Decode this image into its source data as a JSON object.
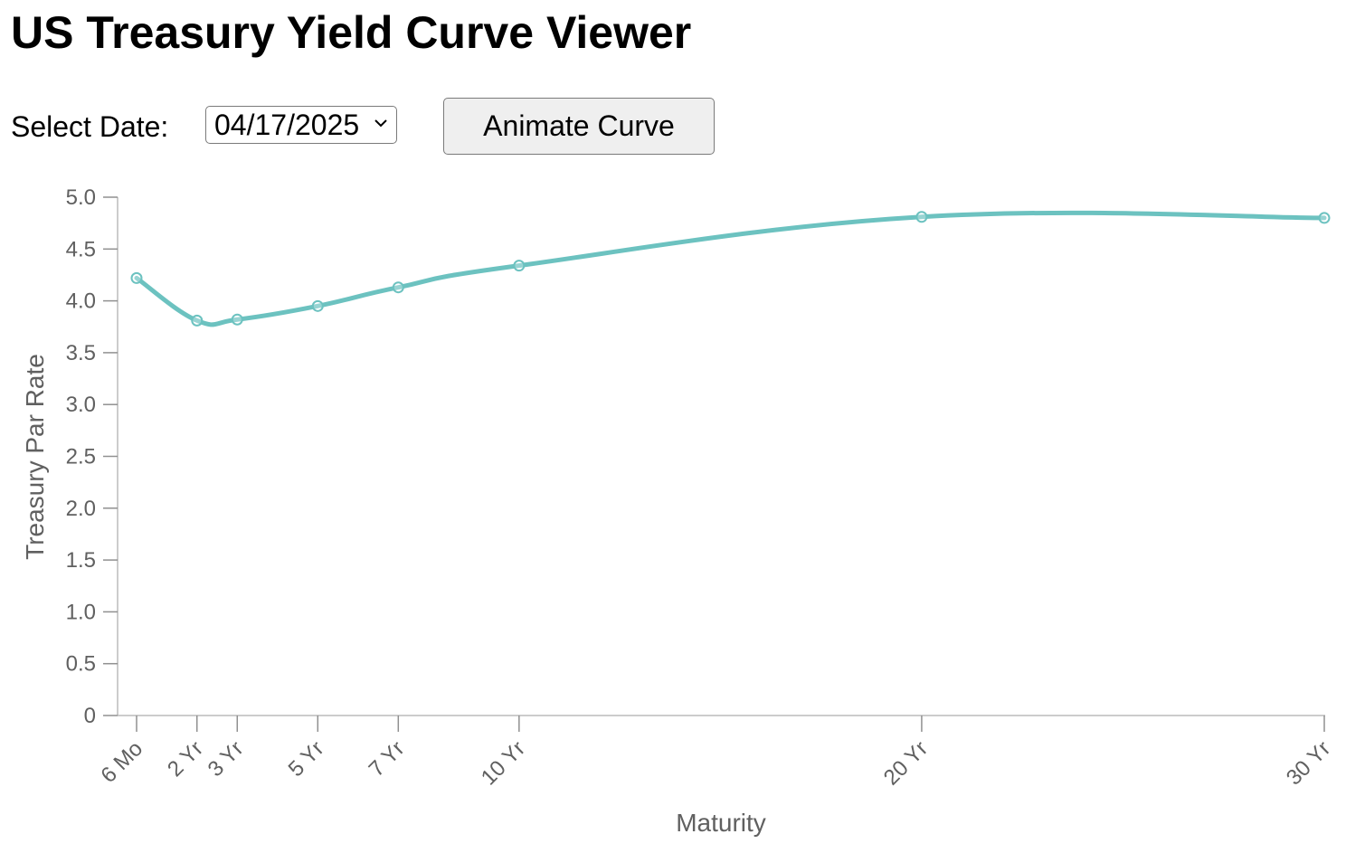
{
  "page": {
    "title": "US Treasury Yield Curve Viewer"
  },
  "controls": {
    "date_label": "Select Date:",
    "selected_date": "04/17/2025",
    "animate_button_label": "Animate Curve"
  },
  "colors": {
    "curve": "#6cc2c0",
    "axis": "#bcbcbc",
    "text": "#606060"
  },
  "icons": {
    "dropdown": "chevron-down-icon"
  },
  "chart_data": {
    "type": "line",
    "title": "",
    "xlabel": "Maturity",
    "ylabel": "Treasury Par Rate",
    "x_scale": "linear in years",
    "x": [
      0.5,
      2,
      3,
      5,
      7,
      10,
      20,
      30
    ],
    "x_tick_labels": [
      "6 Mo",
      "2 Yr",
      "3 Yr",
      "5 Yr",
      "7 Yr",
      "10 Yr",
      "20 Yr",
      "30 Yr"
    ],
    "xlim": [
      0.5,
      30
    ],
    "ylim": [
      0,
      5.0
    ],
    "y_ticks": [
      0,
      0.5,
      1.0,
      1.5,
      2.0,
      2.5,
      3.0,
      3.5,
      4.0,
      4.5,
      5.0
    ],
    "y_tick_labels": [
      "0",
      "0.5",
      "1.0",
      "1.5",
      "2.0",
      "2.5",
      "3.0",
      "3.5",
      "4.0",
      "4.5",
      "5.0"
    ],
    "series": [
      {
        "values": [
          4.22,
          3.81,
          3.82,
          3.95,
          4.13,
          4.34,
          4.81,
          4.8
        ],
        "smooth": true,
        "markers": "hollow-circle"
      }
    ],
    "grid": false,
    "legend": "none"
  }
}
